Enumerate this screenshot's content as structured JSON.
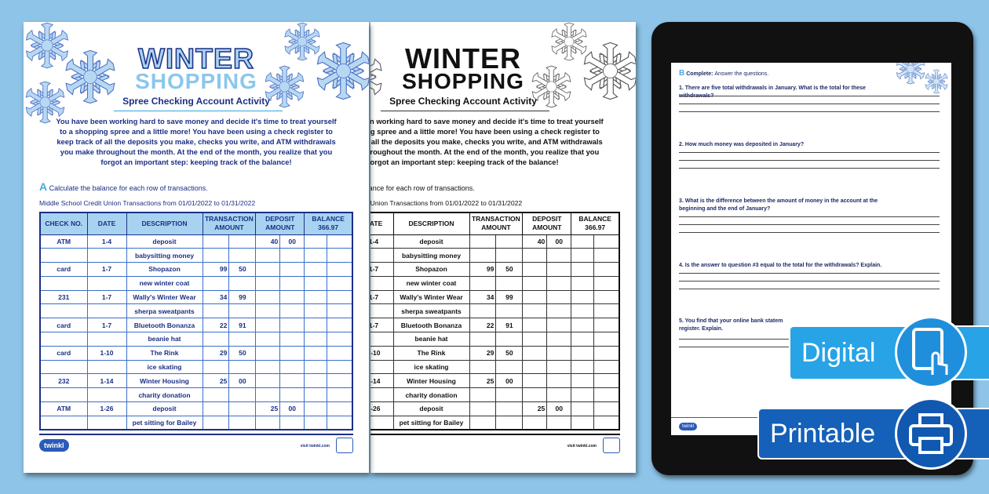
{
  "worksheet": {
    "title_line1": "WINTER",
    "title_line2": "SHOPPING",
    "subtitle": "Spree Checking Account Activity",
    "intro": "You have been working hard to save money and decide it's time to treat yourself to a shopping spree and a little more! You have been using a check register to keep track of all the deposits you make, checks you write, and ATM withdrawals you make throughout the month. At the end of the month, you realize that you forgot an important step: keeping track of the balance!",
    "section_letter": "A",
    "instruction": "Calculate the balance for each row of transactions.",
    "caption": "Middle School Credit Union  Transactions from 01/01/2022 to 01/31/2022",
    "headers": [
      "CHECK NO.",
      "DATE",
      "DESCRIPTION",
      "TRANSACTION AMOUNT",
      "DEPOSIT AMOUNT",
      "BALANCE 366.97"
    ],
    "rows": [
      [
        "ATM",
        "1-4",
        "deposit",
        "",
        "",
        "40",
        "00"
      ],
      [
        "",
        "",
        "babysitting money",
        "",
        "",
        "",
        ""
      ],
      [
        "card",
        "1-7",
        "Shopazon",
        "99",
        "50",
        "",
        ""
      ],
      [
        "",
        "",
        "new winter coat",
        "",
        "",
        "",
        ""
      ],
      [
        "231",
        "1-7",
        "Wally's Winter Wear",
        "34",
        "99",
        "",
        ""
      ],
      [
        "",
        "",
        "sherpa sweatpants",
        "",
        "",
        "",
        ""
      ],
      [
        "card",
        "1-7",
        "Bluetooth Bonanza",
        "22",
        "91",
        "",
        ""
      ],
      [
        "",
        "",
        "beanie hat",
        "",
        "",
        "",
        ""
      ],
      [
        "card",
        "1-10",
        "The Rink",
        "29",
        "50",
        "",
        ""
      ],
      [
        "",
        "",
        "ice skating",
        "",
        "",
        "",
        ""
      ],
      [
        "232",
        "1-14",
        "Winter Housing",
        "25",
        "00",
        "",
        ""
      ],
      [
        "",
        "",
        "charity donation",
        "",
        "",
        "",
        ""
      ],
      [
        "ATM",
        "1-26",
        "deposit",
        "",
        "",
        "25",
        "00"
      ],
      [
        "",
        "",
        "pet sitting for Bailey",
        "",
        "",
        "",
        ""
      ]
    ],
    "logo": "twinkl",
    "url": "visit twinkl.com"
  },
  "tablet": {
    "section_letter": "B",
    "section_label": "Complete:",
    "section_text": "Answer the questions.",
    "questions": [
      "1. There are five total withdrawals in January. What is the total for these withdrawals?",
      "2. How much money was deposited in January?",
      "3. What is the difference between the amount of money in the account at the beginning and the end of January?",
      "4. Is the answer to question #3 equal to the total for the withdrawals? Explain.",
      "5. You find that your online bank statem register. Explain."
    ],
    "logo": "twinkl"
  },
  "badges": {
    "digital": "Digital",
    "printable": "Printable",
    "digital_icon": "tablet-touch-icon",
    "printable_icon": "printer-icon"
  },
  "colors": {
    "background": "#8ec4e8",
    "navy": "#1b2f86",
    "accent": "#27a3e6"
  }
}
